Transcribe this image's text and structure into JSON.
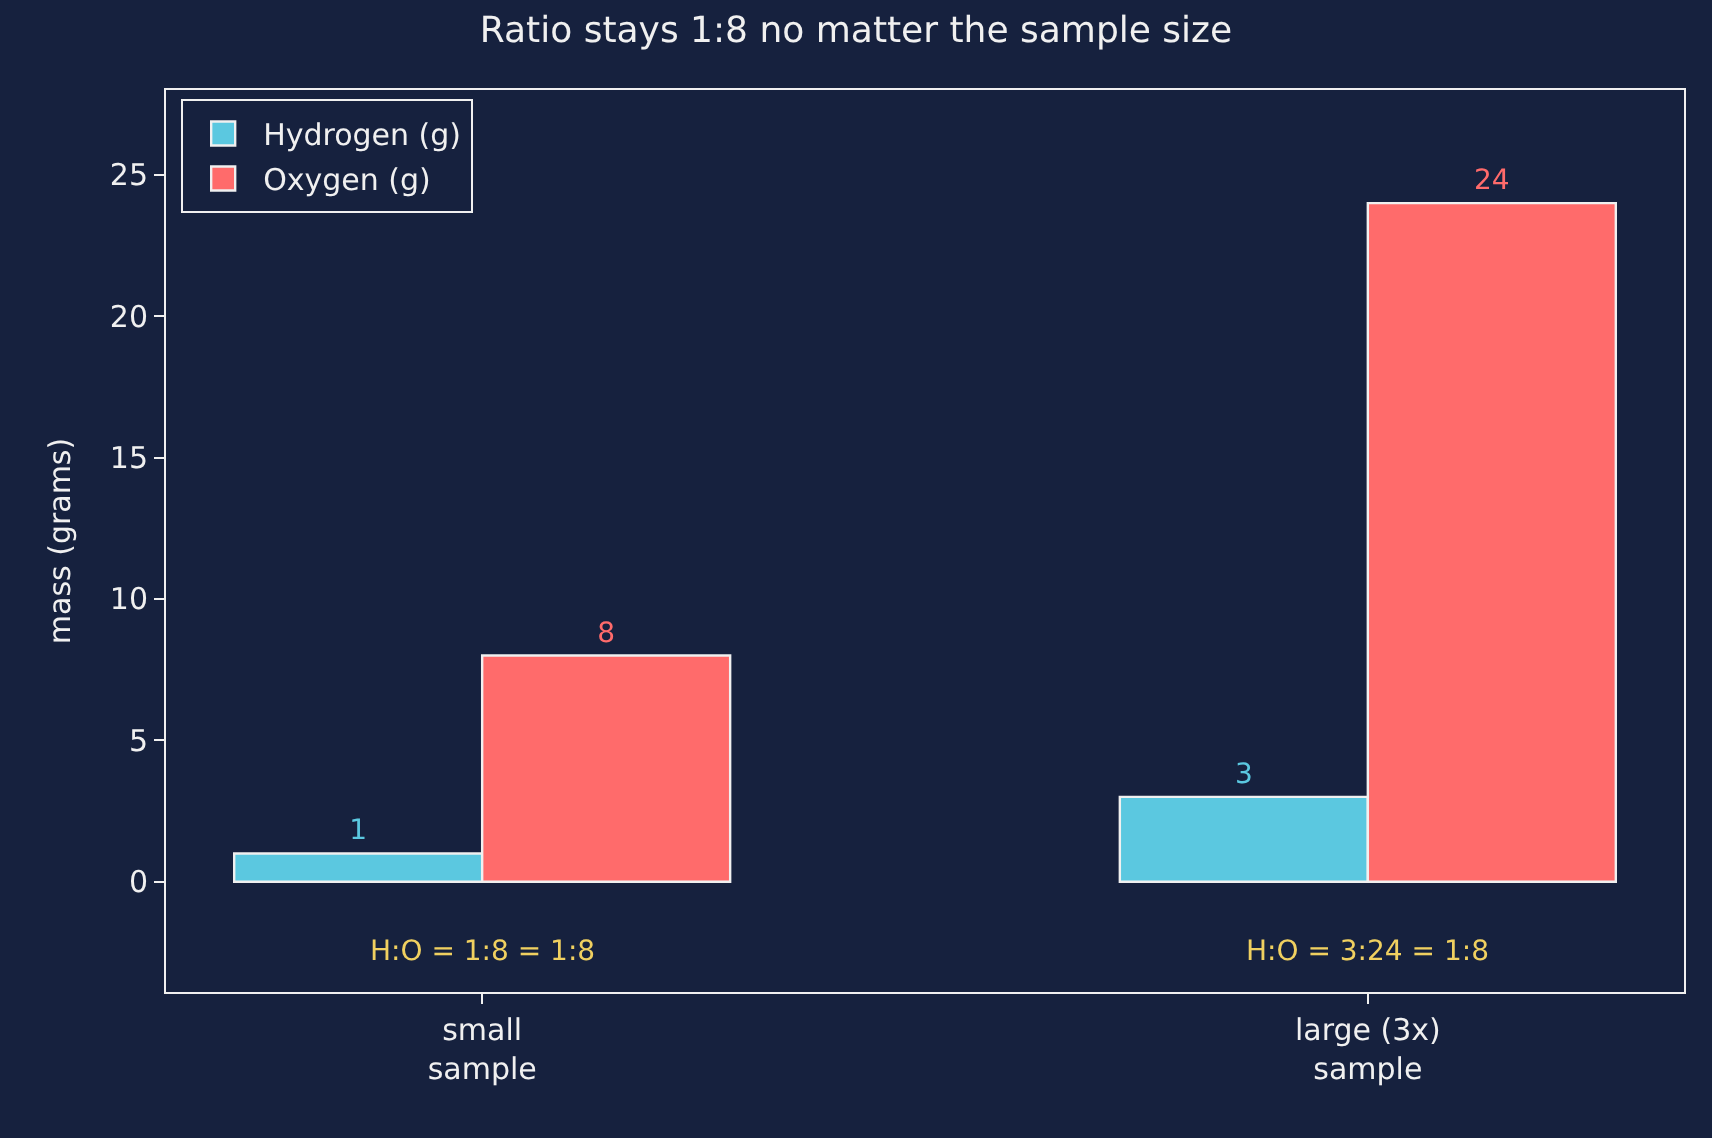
{
  "chart_data": {
    "type": "bar",
    "title": "Ratio stays 1:8 no matter the sample size",
    "ylabel": "mass (grams)",
    "categories": [
      "small\nsample",
      "large (3x)\nsample"
    ],
    "series": [
      {
        "name": "Hydrogen (g)",
        "color": "#5bc8e0",
        "values": [
          1,
          3
        ]
      },
      {
        "name": "Oxygen (g)",
        "color": "#ff6b6b",
        "values": [
          8,
          24
        ]
      }
    ],
    "data_labels": true,
    "ylim": [
      -3.9,
      28
    ],
    "yticks": [
      0,
      5,
      10,
      15,
      20,
      25
    ],
    "grid": false,
    "legend": "top left",
    "annotations": [
      "H:O = 1:8 = 1:8",
      "H:O = 3:24 = 1:8"
    ]
  }
}
